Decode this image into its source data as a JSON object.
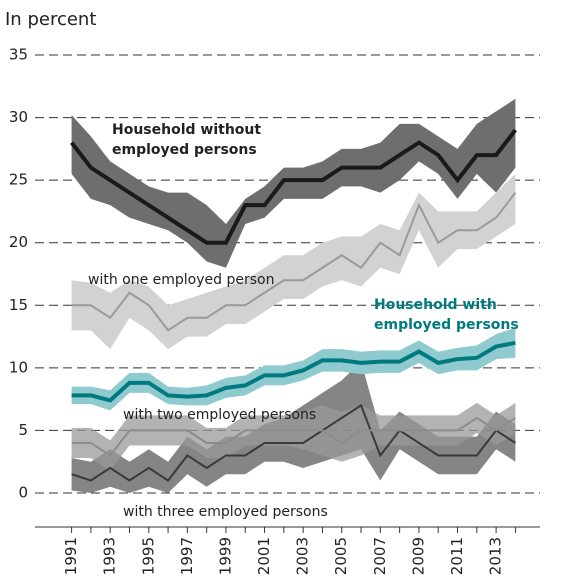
{
  "chart_data": {
    "type": "line",
    "subtitle": "In percent",
    "x": [
      1991,
      1992,
      1993,
      1994,
      1995,
      1996,
      1997,
      1998,
      1999,
      2000,
      2001,
      2002,
      2003,
      2004,
      2005,
      2006,
      2007,
      2008,
      2009,
      2010,
      2011,
      2012,
      2013,
      2014
    ],
    "xlim": [
      1989,
      2016
    ],
    "xticks": [
      1991,
      1993,
      1995,
      1997,
      1999,
      2001,
      2003,
      2005,
      2007,
      2009,
      2011,
      2013
    ],
    "ylim": [
      0,
      35
    ],
    "yticks": [
      0,
      5,
      10,
      15,
      20,
      25,
      30,
      35
    ],
    "grid": true,
    "series": [
      {
        "name": "Household without employed persons",
        "color": "#1a1a1a",
        "band_color": "#6e6e6e",
        "bold": true,
        "values": [
          28,
          26,
          25,
          24,
          23,
          22,
          21,
          20,
          20,
          23,
          23,
          25,
          25,
          25,
          26,
          26,
          26,
          27,
          28,
          27,
          25,
          27,
          27,
          29
        ],
        "upper": [
          30.2,
          28.5,
          26.5,
          25.5,
          24.5,
          24,
          24,
          23,
          21.5,
          23.5,
          24.5,
          26,
          26,
          26.5,
          27.5,
          27.5,
          28,
          29.5,
          29.5,
          28.5,
          27.5,
          29.5,
          30.5,
          31.5
        ],
        "lower": [
          25.5,
          23.5,
          23,
          22,
          21.5,
          21,
          20,
          18.5,
          18,
          21.5,
          22,
          23.5,
          23.5,
          23.5,
          24.5,
          24.5,
          24,
          25,
          26.5,
          25.5,
          23.5,
          25.5,
          24,
          26
        ]
      },
      {
        "name": "with one employed person",
        "color": "#9a9a9a",
        "band_color": "#d2d2d2",
        "bold": false,
        "values": [
          15,
          15,
          14,
          16,
          15,
          13,
          14,
          14,
          15,
          15,
          16,
          17,
          17,
          18,
          19,
          18,
          20,
          19,
          23,
          20,
          21,
          21,
          22,
          24
        ],
        "upper": [
          17,
          16.8,
          16,
          17,
          16.5,
          15,
          15.5,
          16,
          16.5,
          17,
          18,
          19,
          19,
          20,
          20.5,
          20.5,
          21.5,
          21,
          24,
          22.5,
          22.5,
          22.5,
          24,
          25.5
        ],
        "lower": [
          13,
          13,
          11.5,
          14,
          13,
          11.5,
          12.5,
          12.5,
          13.5,
          13.5,
          14.5,
          15.5,
          15.5,
          16.5,
          17,
          16.5,
          18,
          17.5,
          21,
          18,
          19.5,
          19.5,
          20.5,
          21.5
        ]
      },
      {
        "name": "Household with employed persons",
        "color": "#007a80",
        "band_color": "#8fcbce",
        "bold": true,
        "values": [
          7.8,
          7.8,
          7.4,
          8.8,
          8.8,
          7.8,
          7.7,
          7.8,
          8.4,
          8.6,
          9.4,
          9.4,
          9.8,
          10.6,
          10.6,
          10.4,
          10.5,
          10.5,
          11.3,
          10.4,
          10.7,
          10.8,
          11.7,
          12
        ],
        "upper": [
          8.5,
          8.5,
          8.2,
          9.6,
          9.6,
          8.5,
          8.4,
          8.6,
          9.2,
          9.4,
          10.2,
          10.2,
          10.6,
          11.5,
          11.5,
          11.3,
          11.4,
          11.4,
          12.2,
          11.3,
          11.6,
          11.8,
          12.7,
          13.2
        ],
        "lower": [
          7.1,
          7.1,
          6.6,
          8,
          8,
          7.1,
          7,
          7,
          7.6,
          7.8,
          8.6,
          8.6,
          9,
          9.7,
          9.7,
          9.5,
          9.6,
          9.6,
          10.4,
          9.5,
          9.8,
          9.8,
          10.7,
          10.8
        ]
      },
      {
        "name": "with two employed persons",
        "color": "#8c8c8c",
        "band_color": "#9a9a9a",
        "bold": false,
        "values": [
          4,
          4,
          3,
          5,
          5,
          5,
          5,
          4,
          4,
          5,
          5,
          5,
          5,
          5,
          4,
          5,
          5,
          5,
          5,
          5,
          5,
          6,
          5,
          6
        ],
        "upper": [
          5.2,
          5.2,
          4.2,
          6.2,
          6.2,
          6.2,
          6.2,
          5.2,
          5.2,
          6.2,
          6.2,
          6.2,
          6.5,
          7,
          6.5,
          7,
          6.2,
          6.2,
          6.2,
          6.2,
          6.2,
          7.2,
          6.2,
          7.2
        ],
        "lower": [
          2.8,
          2.8,
          1.8,
          3.8,
          3.8,
          3.8,
          3.8,
          2.8,
          2.8,
          3.8,
          3.8,
          3.8,
          3.5,
          3,
          2.5,
          3,
          3.8,
          3.8,
          3.8,
          3.8,
          3.8,
          4.8,
          3.8,
          4.8
        ]
      },
      {
        "name": "with three employed persons",
        "color": "#3a3a3a",
        "band_color": "#5c5c5c",
        "bold": false,
        "values": [
          1.5,
          1,
          2,
          1,
          2,
          1,
          3,
          2,
          3,
          3,
          4,
          4,
          4,
          5,
          6,
          7,
          3,
          5,
          4,
          3,
          3,
          3,
          5,
          4
        ],
        "upper": [
          2.8,
          2.5,
          3.5,
          2.5,
          3.5,
          2.5,
          4.5,
          3.5,
          4.5,
          4.5,
          5.5,
          6,
          7,
          8,
          9,
          10.5,
          5,
          6.5,
          5.5,
          4.5,
          4.5,
          4.5,
          6.5,
          5.5
        ],
        "lower": [
          0.2,
          0,
          0.5,
          0,
          0.5,
          0,
          1.5,
          0.5,
          1.5,
          1.5,
          2.5,
          2.5,
          2,
          2.5,
          3,
          3.5,
          1,
          3.5,
          2.5,
          1.5,
          1.5,
          1.5,
          3.5,
          2.5
        ]
      }
    ]
  }
}
